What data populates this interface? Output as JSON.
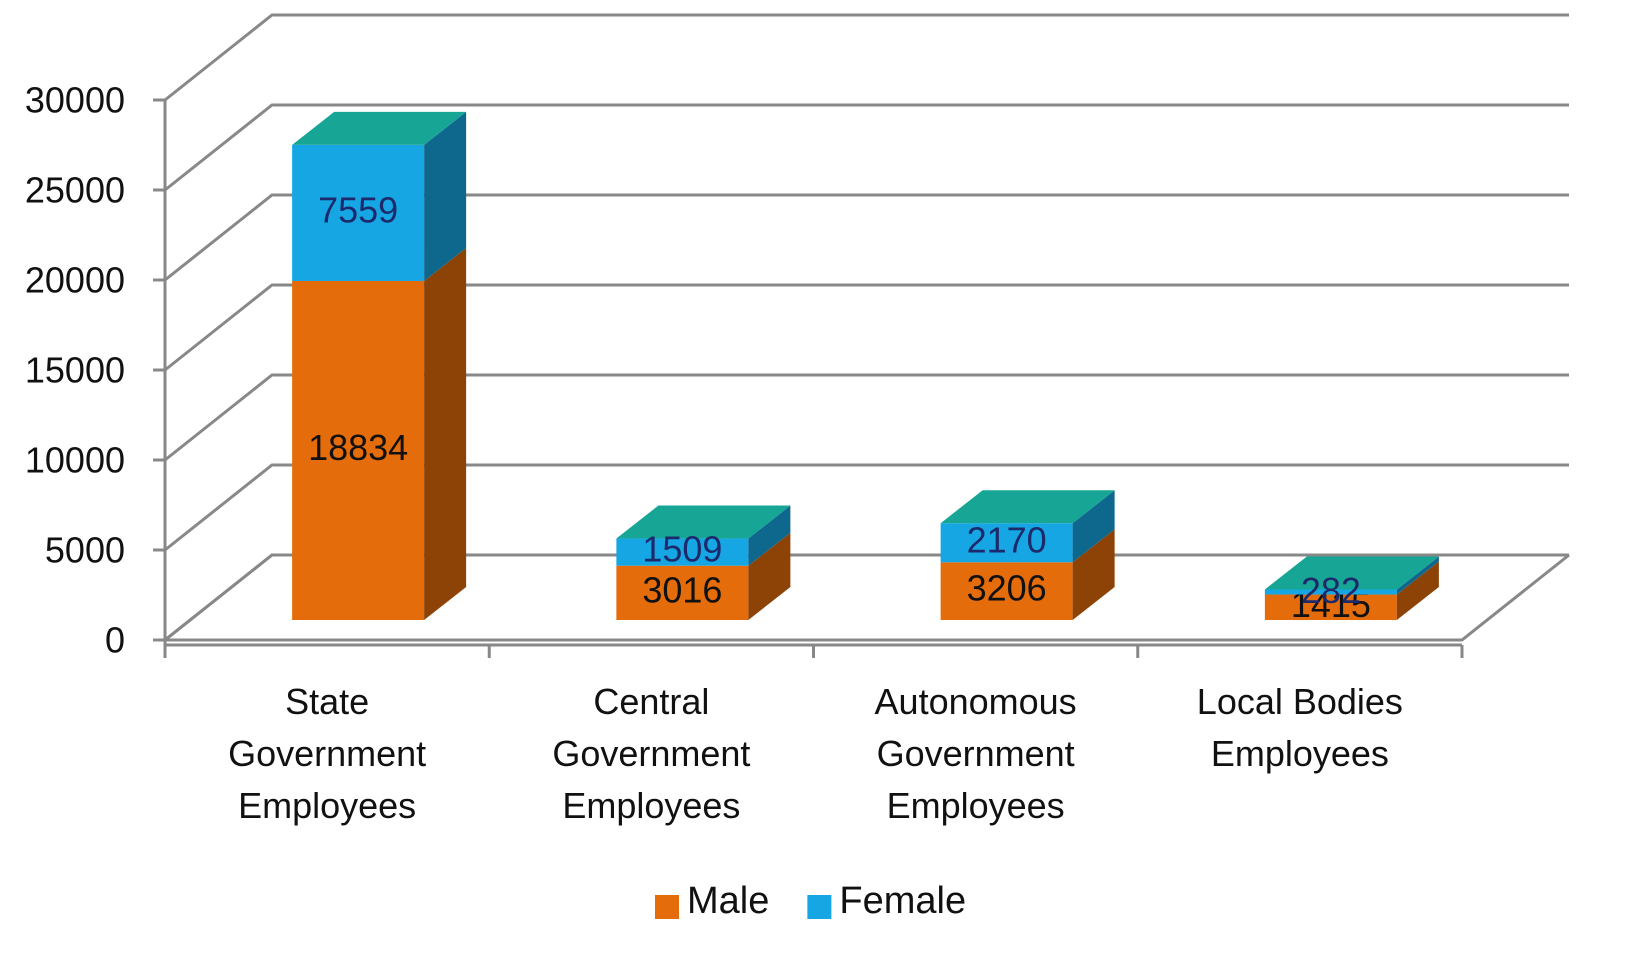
{
  "chart_data": {
    "type": "bar3d_stacked",
    "categories": [
      "State Government Employees",
      "Central Government Employees",
      "Autonomous Government Employees",
      "Local Bodies Employees"
    ],
    "series": [
      {
        "name": "Male",
        "color": "#e46c0a",
        "values": [
          18834,
          3016,
          3206,
          1415
        ]
      },
      {
        "name": "Female",
        "color": "#16a6e4",
        "values": [
          7559,
          1509,
          2170,
          282
        ]
      }
    ],
    "ylim": [
      0,
      30000
    ],
    "yticks": [
      0,
      5000,
      10000,
      15000,
      20000,
      25000,
      30000
    ],
    "grid": true,
    "legend": "bottom"
  }
}
